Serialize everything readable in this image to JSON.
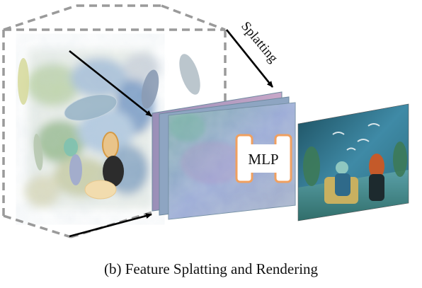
{
  "diagram": {
    "splat_label": "Splatting",
    "mlp_label": "MLP",
    "caption": "(b) Feature Splatting and Rendering"
  },
  "colors": {
    "cube_edge": "#9a9a9a",
    "mlp_border": "#f0a060",
    "arrow": "#000000"
  }
}
